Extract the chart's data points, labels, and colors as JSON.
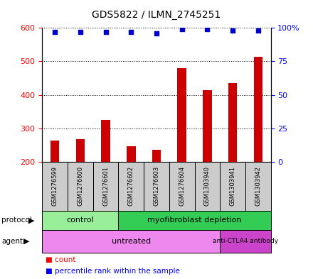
{
  "title": "GDS5822 / ILMN_2745251",
  "samples": [
    "GSM1276599",
    "GSM1276600",
    "GSM1276601",
    "GSM1276602",
    "GSM1276603",
    "GSM1276604",
    "GSM1303940",
    "GSM1303941",
    "GSM1303942"
  ],
  "counts": [
    263,
    268,
    325,
    247,
    236,
    480,
    415,
    435,
    513
  ],
  "percentile_ranks": [
    97,
    97,
    97,
    97,
    96,
    99,
    99,
    98,
    98
  ],
  "ylim_left": [
    200,
    600
  ],
  "ylim_right": [
    0,
    100
  ],
  "yticks_left": [
    200,
    300,
    400,
    500,
    600
  ],
  "yticks_right": [
    0,
    25,
    50,
    75,
    100
  ],
  "ytick_right_labels": [
    "0",
    "25",
    "50",
    "75",
    "100%"
  ],
  "bar_color": "#cc0000",
  "dot_color": "#0000cc",
  "bar_width": 0.35,
  "n_control": 3,
  "n_myofibroblast": 6,
  "n_untreated": 7,
  "n_anti_ctla4": 2,
  "protocol_control_color": "#99ee99",
  "protocol_myofibroblast_color": "#33cc55",
  "agent_untreated_color": "#ee88ee",
  "agent_anti_ctla4_color": "#cc44cc",
  "sample_box_color": "#cccccc",
  "background_color": "#ffffff"
}
